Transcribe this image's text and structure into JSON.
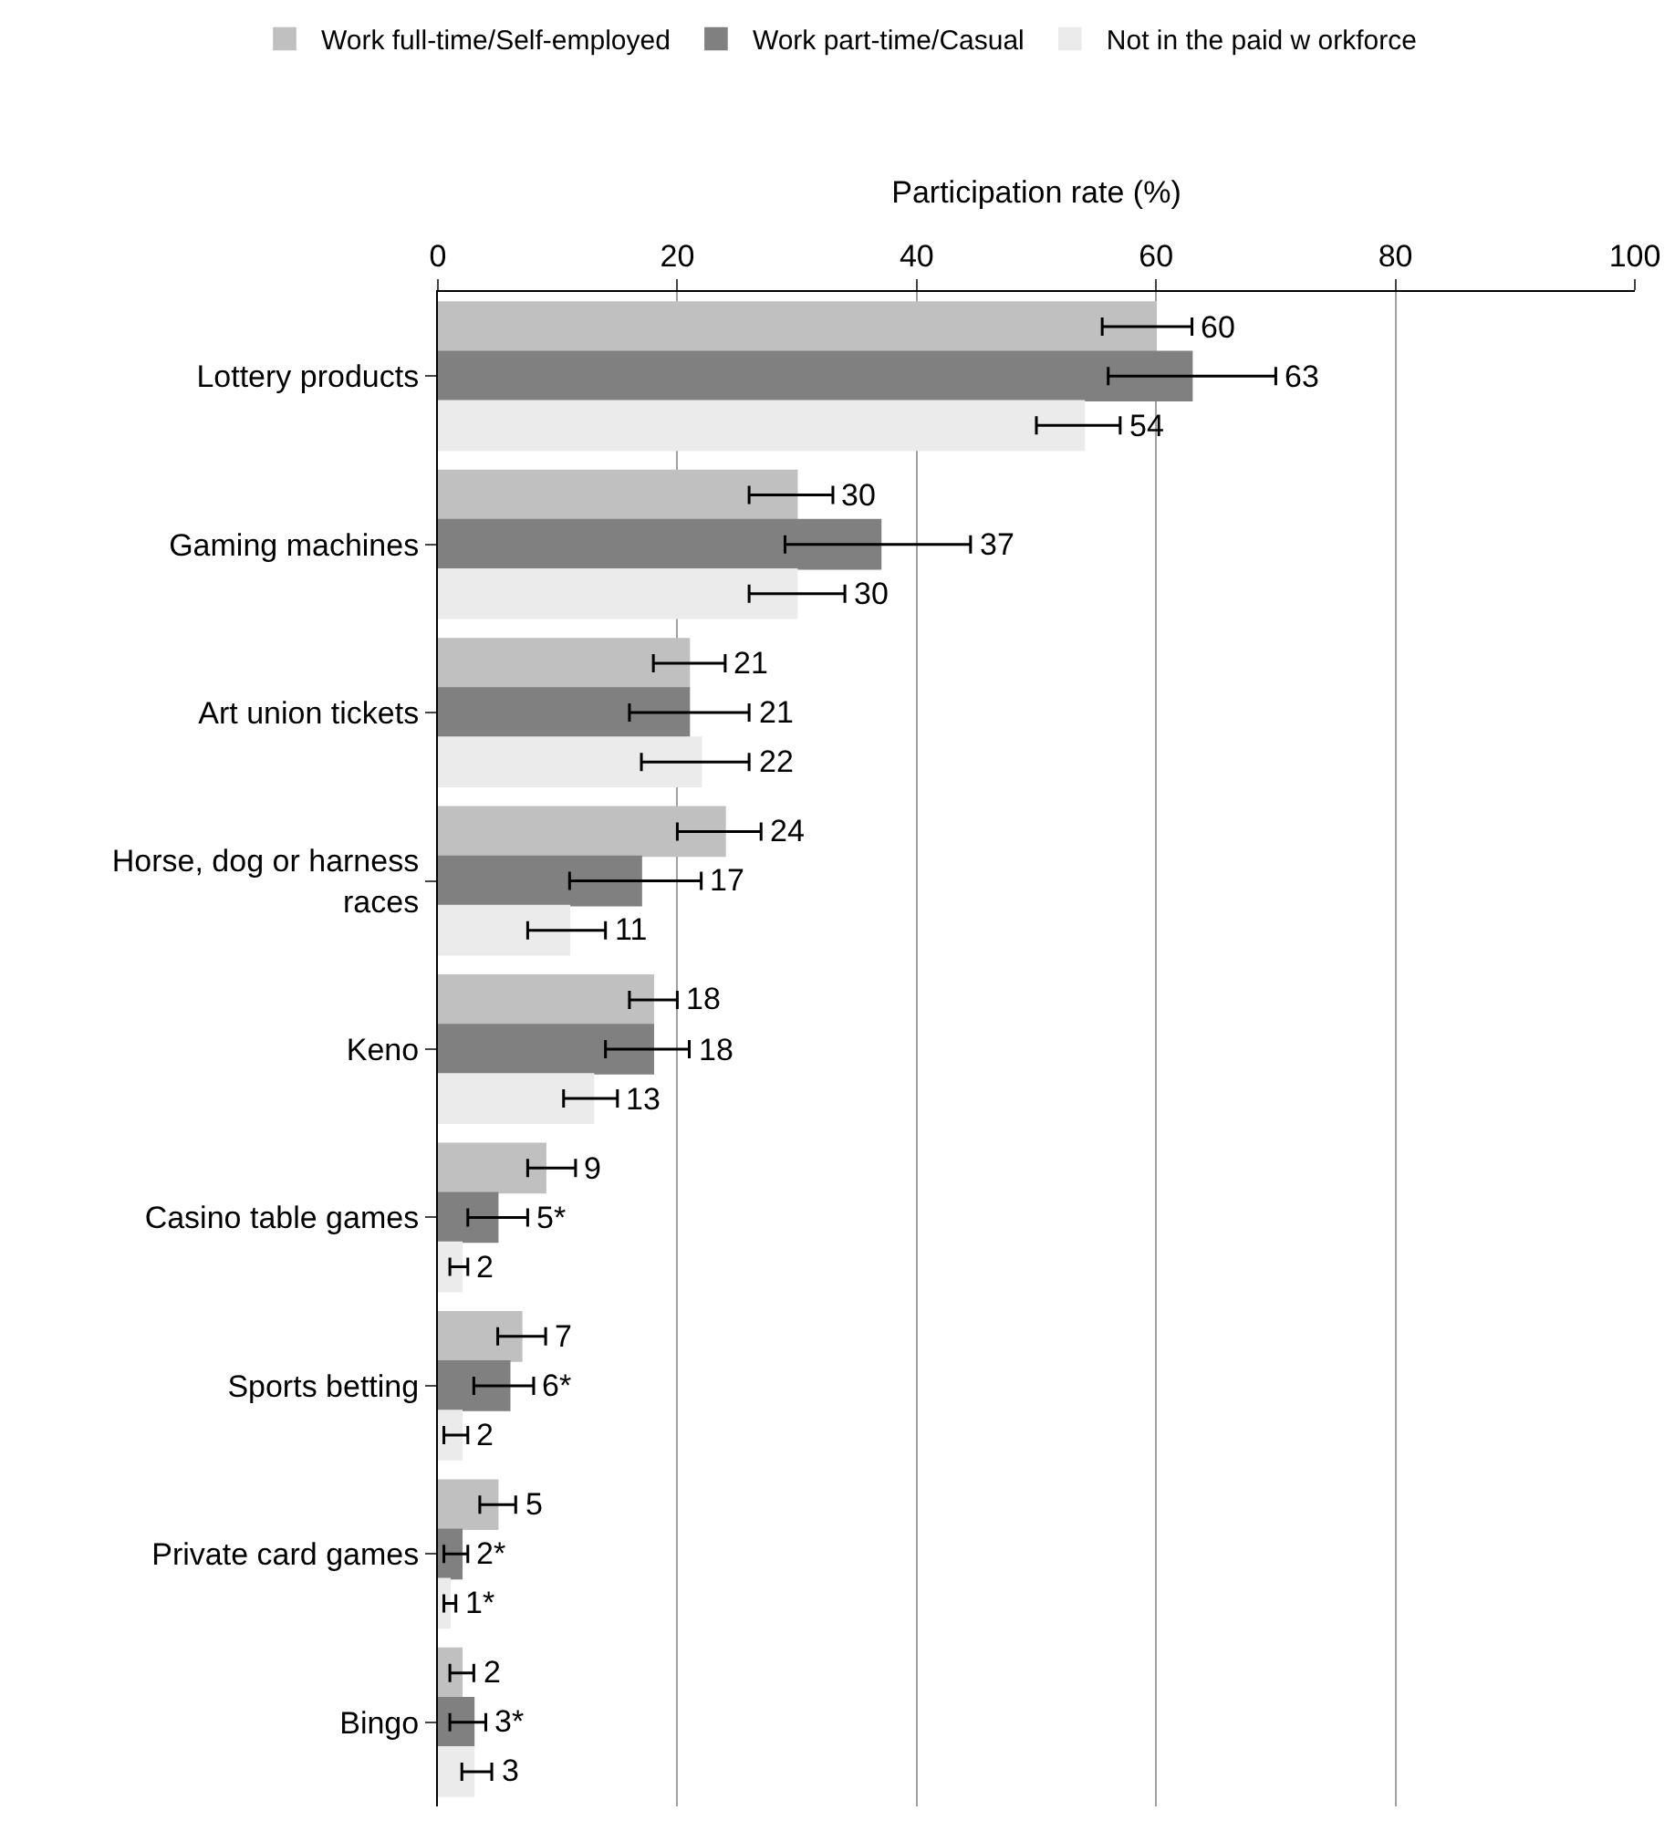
{
  "chart_data": {
    "type": "bar",
    "orientation": "horizontal",
    "xlabel": "Participation rate (%)",
    "categories": [
      "Lottery products",
      "Gaming machines",
      "Art union tickets",
      "Horse, dog or harness races",
      "Keno",
      "Casino table games",
      "Sports betting",
      "Private card games",
      "Bingo"
    ],
    "series": [
      {
        "name": "Work full-time/Self-employed",
        "color": "#c0c0c0",
        "values": [
          60,
          30,
          21,
          24,
          18,
          9,
          7,
          5,
          2
        ],
        "errors": [
          [
            55.5,
            63
          ],
          [
            26,
            33
          ],
          [
            18,
            24
          ],
          [
            20,
            27
          ],
          [
            16,
            20
          ],
          [
            7.5,
            11.5
          ],
          [
            5,
            9
          ],
          [
            3.5,
            6.5
          ],
          [
            1,
            3
          ]
        ],
        "value_labels": [
          "60",
          "30",
          "21",
          "24",
          "18",
          "9",
          "7",
          "5",
          "2"
        ]
      },
      {
        "name": "Work part-time/Casual",
        "color": "#808080",
        "values": [
          63,
          37,
          21,
          17,
          18,
          5,
          6,
          2,
          3
        ],
        "errors": [
          [
            56,
            70
          ],
          [
            29,
            44.5
          ],
          [
            16,
            26
          ],
          [
            11,
            22
          ],
          [
            14,
            21
          ],
          [
            2.5,
            7.5
          ],
          [
            3,
            8
          ],
          [
            0.5,
            2.5
          ],
          [
            1,
            4
          ]
        ],
        "value_labels": [
          "63",
          "37",
          "21",
          "17",
          "18",
          "5*",
          "6*",
          "2*",
          "3*"
        ]
      },
      {
        "name": "Not in the paid w orkforce",
        "color": "#ebebeb",
        "values": [
          54,
          30,
          22,
          11,
          13,
          2,
          2,
          1,
          3
        ],
        "errors": [
          [
            50,
            57
          ],
          [
            26,
            34
          ],
          [
            17,
            26
          ],
          [
            7.5,
            14
          ],
          [
            10.5,
            15
          ],
          [
            1,
            2.5
          ],
          [
            0.5,
            2.5
          ],
          [
            0.5,
            1.5
          ],
          [
            2,
            4.5
          ]
        ],
        "value_labels": [
          "54",
          "30",
          "22",
          "11",
          "13",
          "2",
          "2",
          "1*",
          "3"
        ]
      }
    ],
    "xlim": [
      0,
      100
    ],
    "xticks": [
      0,
      20,
      40,
      60,
      80,
      100
    ],
    "grid": "x",
    "legend": "top"
  }
}
